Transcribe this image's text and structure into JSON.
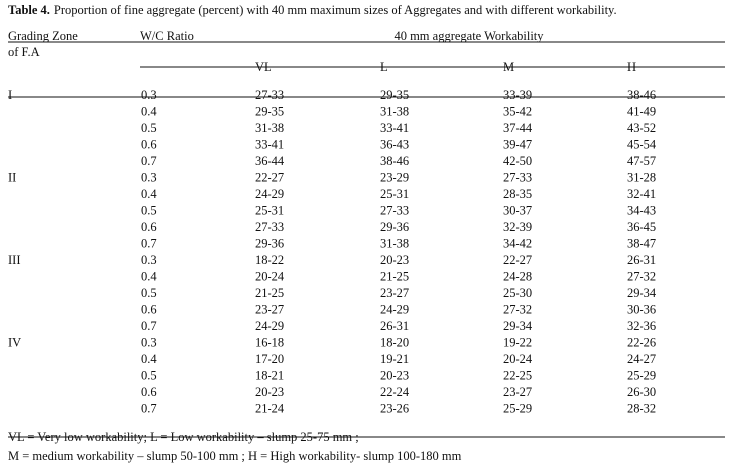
{
  "table": {
    "label": "Table 4.",
    "title": "Proportion of fine aggregate (percent) with 40 mm maximum sizes of Aggregates and with different workability.",
    "header": {
      "zone": [
        "Grading Zone",
        "of F.A"
      ],
      "ratio": "W/C Ratio",
      "group": "40 mm aggregate Workability",
      "columns": [
        "VL",
        "L",
        "M",
        "H"
      ]
    },
    "zones": [
      {
        "zone": "I",
        "rows": [
          [
            "0.3",
            "27-33",
            "29-35",
            "33-39",
            "38-46"
          ],
          [
            "0.4",
            "29-35",
            "31-38",
            "35-42",
            "41-49"
          ],
          [
            "0.5",
            "31-38",
            "33-41",
            "37-44",
            "43-52"
          ],
          [
            "0.6",
            "33-41",
            "36-43",
            "39-47",
            "45-54"
          ],
          [
            "0.7",
            "36-44",
            "38-46",
            "42-50",
            "47-57"
          ]
        ]
      },
      {
        "zone": "II",
        "rows": [
          [
            "0.3",
            "22-27",
            "23-29",
            "27-33",
            "31-28"
          ],
          [
            "0.4",
            "24-29",
            "25-31",
            "28-35",
            "32-41"
          ],
          [
            "0.5",
            "25-31",
            "27-33",
            "30-37",
            "34-43"
          ],
          [
            "0.6",
            "27-33",
            "29-36",
            "32-39",
            "36-45"
          ],
          [
            "0.7",
            "29-36",
            "31-38",
            "34-42",
            "38-47"
          ]
        ]
      },
      {
        "zone": "III",
        "rows": [
          [
            "0.3",
            "18-22",
            "20-23",
            "22-27",
            "26-31"
          ],
          [
            "0.4",
            "20-24",
            "21-25",
            "24-28",
            "27-32"
          ],
          [
            "0.5",
            "21-25",
            "23-27",
            "25-30",
            "29-34"
          ],
          [
            "0.6",
            "23-27",
            "24-29",
            "27-32",
            "30-36"
          ],
          [
            "0.7",
            "24-29",
            "26-31",
            "29-34",
            "32-36"
          ]
        ]
      },
      {
        "zone": "IV",
        "rows": [
          [
            "0.3",
            "16-18",
            "18-20",
            "19-22",
            "22-26"
          ],
          [
            "0.4",
            "17-20",
            "19-21",
            "20-24",
            "24-27"
          ],
          [
            "0.5",
            "18-21",
            "20-23",
            "22-25",
            "25-29"
          ],
          [
            "0.6",
            "20-23",
            "22-24",
            "23-27",
            "26-30"
          ],
          [
            "0.7",
            "21-24",
            "23-26",
            "25-29",
            "28-32"
          ]
        ]
      }
    ],
    "footnotes": [
      "VL = Very low workability;  L = Low workability – slump 25-75 mm ;",
      "M = medium workability – slump 50-100 mm ; H = High workability- slump 100-180 mm"
    ]
  }
}
